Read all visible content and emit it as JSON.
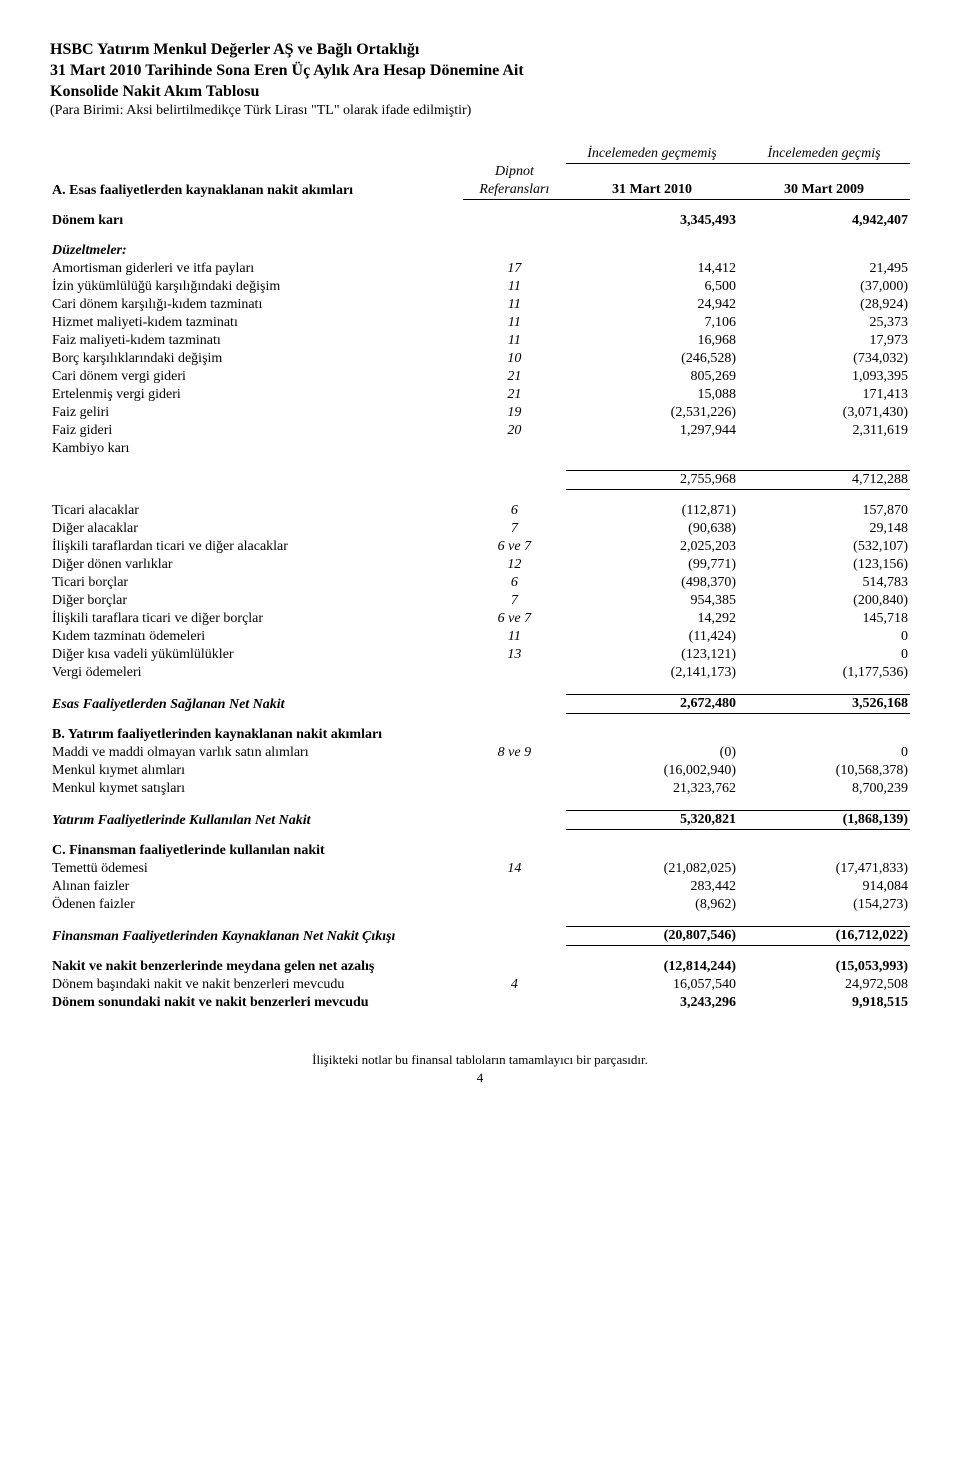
{
  "header": {
    "line1": "HSBC Yatırım Menkul Değerler AŞ ve Bağlı Ortaklığı",
    "line2": "31 Mart 2010 Tarihinde Sona Eren Üç Aylık Ara Hesap Dönemine Ait",
    "line3": "Konsolide Nakit Akım Tablosu",
    "line4": "(Para Birimi: Aksi belirtilmedikçe Türk Lirası \"TL\" olarak ifade edilmiştir)"
  },
  "columns": {
    "ref_label_top": "Dipnot",
    "ref_label_bottom": "Referansları",
    "col1_top": "İncelemeden geçmemiş",
    "col2_top": "İncelemeden geçmiş",
    "col1": "31 Mart 2010",
    "col2": "30 Mart 2009"
  },
  "sectionA": {
    "title": "A. Esas faaliyetlerden kaynaklanan nakit akımları",
    "donem_kari": {
      "label": "Dönem karı",
      "v1": "3,345,493",
      "v2": "4,942,407"
    },
    "duzeltmeler_label": "Düzeltmeler:",
    "rows": [
      {
        "label": "Amortisman giderleri ve itfa payları",
        "ref": "17",
        "v1": "14,412",
        "v2": "21,495"
      },
      {
        "label": "İzin yükümlülüğü karşılığındaki değişim",
        "ref": "11",
        "v1": "6,500",
        "v2": "(37,000)"
      },
      {
        "label": "Cari dönem karşılığı-kıdem tazminatı",
        "ref": "11",
        "v1": "24,942",
        "v2": "(28,924)"
      },
      {
        "label": "Hizmet maliyeti-kıdem tazminatı",
        "ref": "11",
        "v1": "7,106",
        "v2": "25,373"
      },
      {
        "label": "Faiz maliyeti-kıdem tazminatı",
        "ref": "11",
        "v1": "16,968",
        "v2": "17,973"
      },
      {
        "label": "Borç karşılıklarındaki değişim",
        "ref": "10",
        "v1": "(246,528)",
        "v2": "(734,032)"
      },
      {
        "label": "Cari dönem vergi gideri",
        "ref": "21",
        "v1": "805,269",
        "v2": "1,093,395"
      },
      {
        "label": "Ertelenmiş vergi gideri",
        "ref": "21",
        "v1": "15,088",
        "v2": "171,413"
      },
      {
        "label": "Faiz geliri",
        "ref": "19",
        "v1": "(2,531,226)",
        "v2": "(3,071,430)"
      },
      {
        "label": "Faiz gideri",
        "ref": "20",
        "v1": "1,297,944",
        "v2": "2,311,619"
      },
      {
        "label": "Kambiyo karı",
        "ref": "",
        "v1": "",
        "v2": ""
      }
    ],
    "subtotal": {
      "v1": "2,755,968",
      "v2": "4,712,288"
    },
    "changes": [
      {
        "label": "Ticari alacaklar",
        "ref": "6",
        "v1": "(112,871)",
        "v2": "157,870"
      },
      {
        "label": "Diğer alacaklar",
        "ref": "7",
        "v1": "(90,638)",
        "v2": "29,148"
      },
      {
        "label": "İlişkili taraflardan ticari ve diğer alacaklar",
        "ref": "6 ve 7",
        "v1": "2,025,203",
        "v2": "(532,107)"
      },
      {
        "label": "Diğer dönen varlıklar",
        "ref": "12",
        "v1": "(99,771)",
        "v2": "(123,156)"
      },
      {
        "label": "Ticari borçlar",
        "ref": "6",
        "v1": "(498,370)",
        "v2": "514,783"
      },
      {
        "label": "Diğer borçlar",
        "ref": "7",
        "v1": "954,385",
        "v2": "(200,840)"
      },
      {
        "label": "İlişkili taraflara ticari ve diğer borçlar",
        "ref": "6 ve 7",
        "v1": "14,292",
        "v2": "145,718"
      },
      {
        "label": "Kıdem tazminatı ödemeleri",
        "ref": "11",
        "v1": "(11,424)",
        "v2": "0"
      },
      {
        "label": "Diğer kısa vadeli yükümlülükler",
        "ref": "13",
        "v1": "(123,121)",
        "v2": "0"
      },
      {
        "label": "Vergi ödemeleri",
        "ref": "",
        "v1": "(2,141,173)",
        "v2": "(1,177,536)"
      }
    ],
    "net": {
      "label": "Esas Faaliyetlerden Sağlanan Net Nakit",
      "v1": "2,672,480",
      "v2": "3,526,168"
    }
  },
  "sectionB": {
    "title": "B. Yatırım faaliyetlerinden kaynaklanan nakit akımları",
    "rows": [
      {
        "label": "Maddi ve maddi olmayan varlık satın alımları",
        "ref": "8 ve 9",
        "v1": "(0)",
        "v2": "0"
      },
      {
        "label": "Menkul kıymet alımları",
        "ref": "",
        "v1": "(16,002,940)",
        "v2": "(10,568,378)"
      },
      {
        "label": "Menkul kıymet satışları",
        "ref": "",
        "v1": "21,323,762",
        "v2": "8,700,239"
      }
    ],
    "net": {
      "label": "Yatırım Faaliyetlerinde Kullanılan Net Nakit",
      "v1": "5,320,821",
      "v2": "(1,868,139)"
    }
  },
  "sectionC": {
    "title": "C. Finansman faaliyetlerinde kullanılan nakit",
    "rows": [
      {
        "label": "Temettü ödemesi",
        "ref": "14",
        "v1": "(21,082,025)",
        "v2": "(17,471,833)"
      },
      {
        "label": "Alınan faizler",
        "ref": "",
        "v1": "283,442",
        "v2": "914,084"
      },
      {
        "label": "Ödenen faizler",
        "ref": "",
        "v1": "(8,962)",
        "v2": "(154,273)"
      }
    ],
    "net": {
      "label": "Finansman Faaliyetlerinden Kaynaklanan Net Nakit Çıkışı",
      "v1": "(20,807,546)",
      "v2": "(16,712,022)"
    }
  },
  "summary": {
    "rows": [
      {
        "label": "Nakit ve nakit benzerlerinde meydana gelen net azalış",
        "ref": "",
        "v1": "(12,814,244)",
        "v2": "(15,053,993)",
        "bold": true
      },
      {
        "label": "Dönem başındaki nakit ve nakit benzerleri mevcudu",
        "ref": "4",
        "v1": "16,057,540",
        "v2": "24,972,508",
        "bold": false
      },
      {
        "label": "Dönem sonundaki nakit ve nakit benzerleri mevcudu",
        "ref": "",
        "v1": "3,243,296",
        "v2": "9,918,515",
        "bold": true
      }
    ]
  },
  "footer": {
    "note": "İlişikteki notlar bu finansal tabloların tamamlayıcı bir parçasıdır.",
    "page": "4"
  }
}
